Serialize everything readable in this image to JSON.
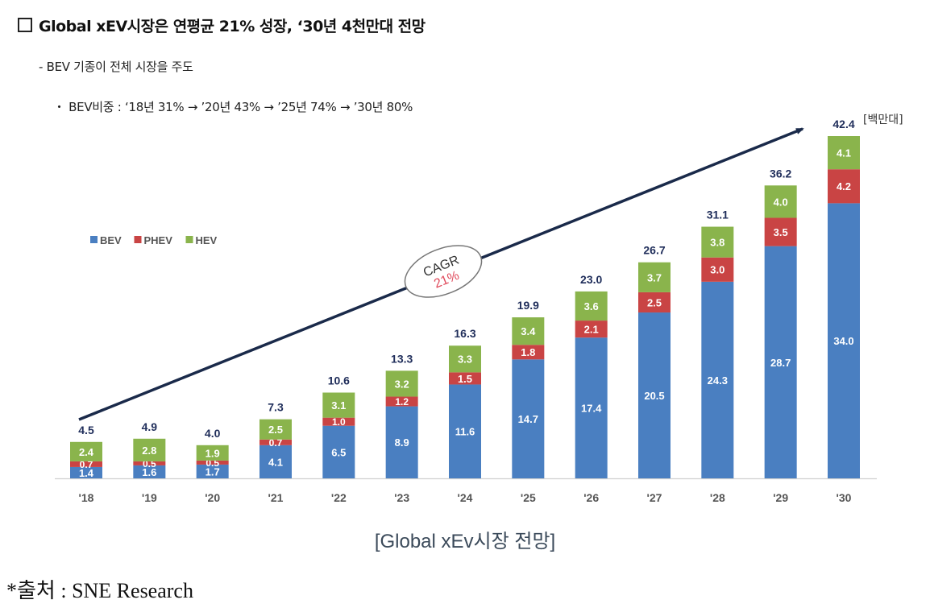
{
  "header": {
    "title": "Global  xEV시장은 연평균 21% 성장, ‘30년 4천만대 전망",
    "bullet1": "- BEV 기종이 전체 시장을 주도",
    "bullet2": "・ BEV비중 : ‘18년 31% → ’20년 43% → ’25년 74% → ’30년 80%"
  },
  "chart_data": {
    "type": "bar",
    "stacked": true,
    "title": "Global xEV시장 전망",
    "unit_label": "[백만대]",
    "xlabel": "",
    "ylabel": "",
    "ylim": [
      0,
      42.4
    ],
    "grid": false,
    "legend_position": "top-left",
    "categories": [
      "'18",
      "'19",
      "'20",
      "'21",
      "'22",
      "'23",
      "'24",
      "'25",
      "'26",
      "'27",
      "'28",
      "'29",
      "'30"
    ],
    "series": [
      {
        "name": "BEV",
        "color": "#4a7fc1",
        "values": [
          1.4,
          1.6,
          1.7,
          4.1,
          6.5,
          8.9,
          11.6,
          14.7,
          17.4,
          20.5,
          24.3,
          28.7,
          34.0
        ]
      },
      {
        "name": "PHEV",
        "color": "#c94444",
        "values": [
          0.7,
          0.5,
          0.5,
          0.7,
          1.0,
          1.2,
          1.5,
          1.8,
          2.1,
          2.5,
          3.0,
          3.5,
          4.2
        ]
      },
      {
        "name": "HEV",
        "color": "#8ab44c",
        "values": [
          2.4,
          2.8,
          1.9,
          2.5,
          3.1,
          3.2,
          3.3,
          3.4,
          3.6,
          3.7,
          3.8,
          4.0,
          4.1
        ]
      }
    ],
    "totals": [
      "4.5",
      "4.9",
      "4.0",
      "7.3",
      "10.6",
      "13.3",
      "16.3",
      "19.9",
      "23.0",
      "26.7",
      "31.1",
      "36.2",
      "42.4"
    ],
    "annotation": {
      "label": "CAGR",
      "value": "21%",
      "value_color": "#e0485a"
    },
    "total_label_color": "#1f2d5a",
    "axis_label_color": "#555555",
    "arrow_color": "#1a2a4a"
  },
  "footer": {
    "caption": "[Global xEv시장 전망]",
    "source": "*출처 : SNE Research"
  }
}
